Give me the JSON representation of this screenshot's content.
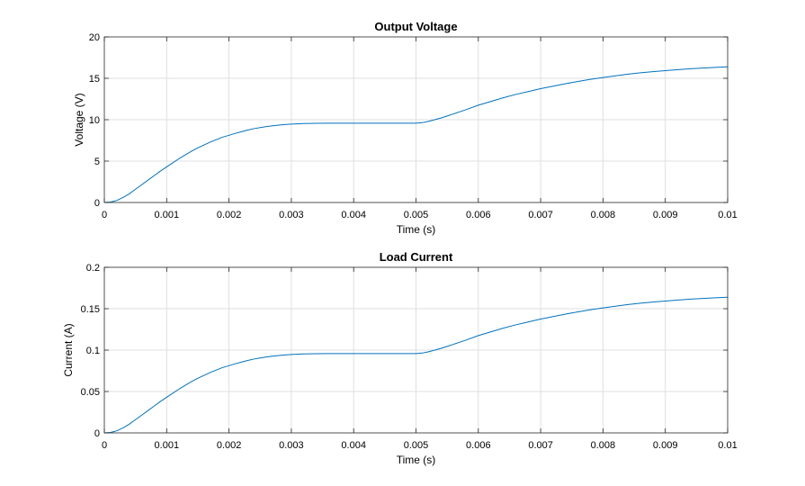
{
  "chart_data": [
    {
      "type": "line",
      "title": "Output Voltage",
      "xlabel": "Time (s)",
      "ylabel": "Voltage (V)",
      "xlim": [
        0,
        0.01
      ],
      "ylim": [
        0,
        20
      ],
      "grid": true,
      "x_ticks": [
        "0",
        "0.001",
        "0.002",
        "0.003",
        "0.004",
        "0.005",
        "0.006",
        "0.007",
        "0.008",
        "0.009",
        "0.01"
      ],
      "y_ticks": [
        "0",
        "5",
        "10",
        "15",
        "20"
      ],
      "color": "#0072BD",
      "series": [
        {
          "x": [
            0,
            0.0001,
            0.0002,
            0.0003,
            0.0004,
            0.0005,
            0.0006,
            0.0007,
            0.0008,
            0.0009,
            0.001,
            0.0011,
            0.0012,
            0.0013,
            0.0014,
            0.0015,
            0.0016,
            0.0017,
            0.0018,
            0.0019,
            0.002,
            0.0021,
            0.0022,
            0.0023,
            0.0024,
            0.0025,
            0.0026,
            0.0027,
            0.0028,
            0.0029,
            0.003,
            0.0032,
            0.0034,
            0.0036,
            0.0038,
            0.004,
            0.0042,
            0.0044,
            0.0046,
            0.0048,
            0.005,
            0.0051,
            0.0052,
            0.0053,
            0.0054,
            0.0055,
            0.0056,
            0.0058,
            0.006,
            0.0062,
            0.0064,
            0.0066,
            0.0068,
            0.007,
            0.0072,
            0.0074,
            0.0076,
            0.0078,
            0.008,
            0.0082,
            0.0084,
            0.0086,
            0.0088,
            0.009,
            0.0092,
            0.0094,
            0.0096,
            0.0098,
            0.01
          ],
          "y": [
            0,
            0.05,
            0.25,
            0.6,
            1.05,
            1.6,
            2.15,
            2.7,
            3.25,
            3.8,
            4.3,
            4.8,
            5.3,
            5.75,
            6.2,
            6.6,
            6.95,
            7.3,
            7.6,
            7.9,
            8.12,
            8.35,
            8.55,
            8.75,
            8.92,
            9.05,
            9.17,
            9.27,
            9.35,
            9.42,
            9.47,
            9.54,
            9.57,
            9.58,
            9.58,
            9.58,
            9.58,
            9.58,
            9.58,
            9.58,
            9.58,
            9.64,
            9.8,
            10.0,
            10.2,
            10.45,
            10.7,
            11.2,
            11.75,
            12.2,
            12.65,
            13.05,
            13.4,
            13.75,
            14.05,
            14.35,
            14.62,
            14.88,
            15.1,
            15.3,
            15.5,
            15.66,
            15.8,
            15.93,
            16.05,
            16.15,
            16.24,
            16.32,
            16.38
          ]
        }
      ]
    },
    {
      "type": "line",
      "title": "Load Current",
      "xlabel": "Time (s)",
      "ylabel": "Current (A)",
      "xlim": [
        0,
        0.01
      ],
      "ylim": [
        0,
        0.2
      ],
      "grid": true,
      "x_ticks": [
        "0",
        "0.001",
        "0.002",
        "0.003",
        "0.004",
        "0.005",
        "0.006",
        "0.007",
        "0.008",
        "0.009",
        "0.01"
      ],
      "y_ticks": [
        "0",
        "0.05",
        "0.1",
        "0.15",
        "0.2"
      ],
      "color": "#0072BD",
      "series": [
        {
          "x": [
            0,
            0.0001,
            0.0002,
            0.0003,
            0.0004,
            0.0005,
            0.0006,
            0.0007,
            0.0008,
            0.0009,
            0.001,
            0.0011,
            0.0012,
            0.0013,
            0.0014,
            0.0015,
            0.0016,
            0.0017,
            0.0018,
            0.0019,
            0.002,
            0.0021,
            0.0022,
            0.0023,
            0.0024,
            0.0025,
            0.0026,
            0.0027,
            0.0028,
            0.0029,
            0.003,
            0.0032,
            0.0034,
            0.0036,
            0.0038,
            0.004,
            0.0042,
            0.0044,
            0.0046,
            0.0048,
            0.005,
            0.0051,
            0.0052,
            0.0053,
            0.0054,
            0.0055,
            0.0056,
            0.0058,
            0.006,
            0.0062,
            0.0064,
            0.0066,
            0.0068,
            0.007,
            0.0072,
            0.0074,
            0.0076,
            0.0078,
            0.008,
            0.0082,
            0.0084,
            0.0086,
            0.0088,
            0.009,
            0.0092,
            0.0094,
            0.0096,
            0.0098,
            0.01
          ],
          "y": [
            0,
            0.0005,
            0.0025,
            0.006,
            0.0105,
            0.016,
            0.0215,
            0.027,
            0.0325,
            0.038,
            0.043,
            0.048,
            0.053,
            0.0575,
            0.062,
            0.066,
            0.0695,
            0.073,
            0.076,
            0.079,
            0.0812,
            0.0835,
            0.0855,
            0.0875,
            0.0892,
            0.0905,
            0.0917,
            0.0927,
            0.0935,
            0.0942,
            0.0947,
            0.0954,
            0.0957,
            0.0958,
            0.0958,
            0.0958,
            0.0958,
            0.0958,
            0.0958,
            0.0958,
            0.0958,
            0.0964,
            0.098,
            0.1,
            0.102,
            0.1045,
            0.107,
            0.112,
            0.1175,
            0.122,
            0.1265,
            0.1305,
            0.134,
            0.1375,
            0.1405,
            0.1435,
            0.1462,
            0.1488,
            0.151,
            0.153,
            0.155,
            0.1566,
            0.158,
            0.1593,
            0.1605,
            0.1615,
            0.1624,
            0.1632,
            0.1638
          ]
        }
      ]
    }
  ]
}
